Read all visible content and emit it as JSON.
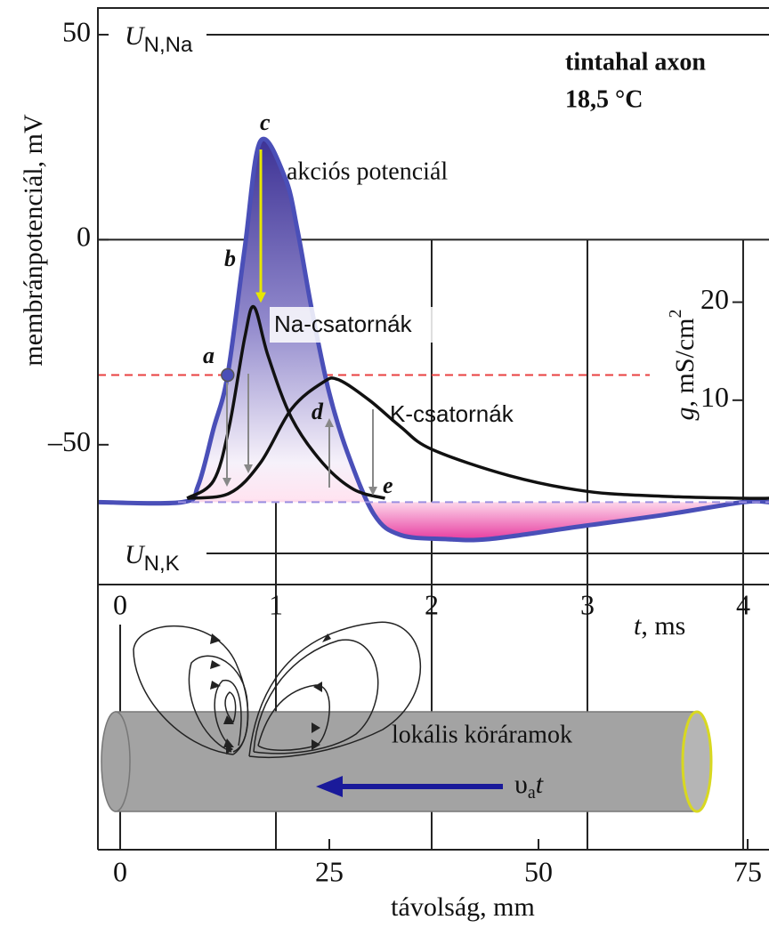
{
  "chart_data": {
    "type": "line",
    "annotations": [
      "tintahal axon",
      "18,5 °C"
    ],
    "ylabel": "membránpotenciál, mV",
    "y2label": [
      "g",
      ", mS/cm",
      "2"
    ],
    "xlabel": [
      "t",
      ", ms"
    ],
    "xlim": [
      -0.143,
      4.166
    ],
    "xticks": [
      0,
      1,
      2,
      3,
      4
    ],
    "ylim": [
      -84.1,
      56.5
    ],
    "yticks": [
      50,
      0,
      {
        "value": -50,
        "label": "–50"
      }
    ],
    "y2lim": [
      -8.8,
      50
    ],
    "y2ticks": [
      20,
      10
    ],
    "grid": true,
    "series": [
      {
        "name": "akciós potenciál",
        "color": "#4a4fb8",
        "x": [
          -0.143,
          0.4,
          0.5,
          0.6,
          0.69,
          0.8,
          0.9,
          1.06,
          1.14,
          1.23,
          1.34,
          1.46,
          1.63,
          1.8,
          2.09,
          2.37,
          2.94,
          3.51,
          4.0,
          4.166
        ],
        "values": [
          -64,
          -64,
          -60,
          -46,
          -33,
          -2,
          24,
          15,
          2,
          -17,
          -37,
          -52,
          -67,
          -72,
          -73,
          -73,
          -70,
          -67,
          -64,
          -64
        ]
      },
      {
        "name": "Na-csatornák",
        "color": "#111111",
        "axis": "y2",
        "x": [
          0.43,
          0.6,
          0.7,
          0.8,
          0.86,
          0.95,
          1.1,
          1.3,
          1.5,
          1.7
        ],
        "values": [
          0,
          1.8,
          7.3,
          16.4,
          19.5,
          14.5,
          8.2,
          3.6,
          0.9,
          0
        ]
      },
      {
        "name": "K-csatornák",
        "color": "#111111",
        "axis": "y2",
        "x": [
          0.43,
          0.7,
          0.9,
          1.1,
          1.3,
          1.4,
          1.6,
          1.8,
          2.0,
          2.5,
          3.0,
          3.5,
          4.0,
          4.166
        ],
        "values": [
          0,
          0.5,
          3.6,
          9.1,
          11.8,
          12.1,
          10,
          7.3,
          5,
          2.3,
          0.7,
          0.2,
          0,
          0
        ]
      }
    ],
    "ref_lines": [
      {
        "label": [
          "U",
          "N,Na"
        ],
        "value": 50
      },
      {
        "label": [
          "U",
          "N,K"
        ],
        "value": -76.5
      }
    ],
    "threshold": -33,
    "threshold_color": "#e84040",
    "rest": -64,
    "rest_color": "#9a8ee0",
    "point_labels": [
      "a",
      "b",
      "c",
      "d",
      "e"
    ],
    "marker": {
      "x": 0.69,
      "y": -33
    },
    "x2label": "távolság, mm",
    "x2lim": [
      -2.66,
      77.55
    ],
    "x2ticks": [
      0,
      25,
      50,
      75
    ],
    "lower_annotation": "lokális köráramok",
    "velocity_label": [
      "υ",
      "a",
      "t"
    ]
  }
}
